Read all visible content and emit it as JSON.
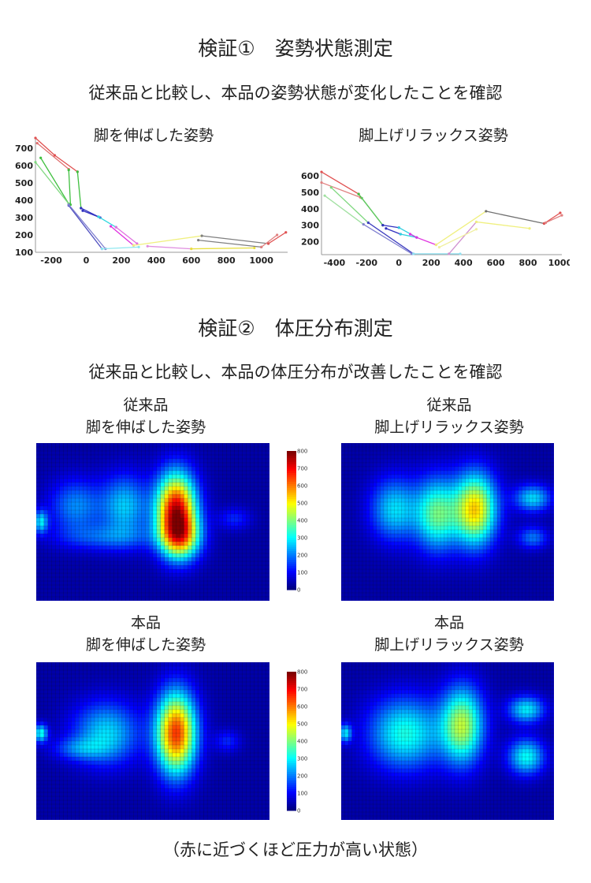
{
  "section1": {
    "title": "検証①　姿勢状態測定",
    "subtitle": "従来品と比較し、本品の姿勢状態が変化したことを確認"
  },
  "section2": {
    "title": "検証②　体圧分布測定",
    "subtitle": "従来品と比較し、本品の体圧分布が改善したことを確認",
    "panels": [
      {
        "line1": "従来品",
        "line2": "脚を伸ばした姿勢"
      },
      {
        "line1": "従来品",
        "line2": "脚上げリラックス姿勢"
      },
      {
        "line1": "本品",
        "line2": "脚を伸ばした姿勢"
      },
      {
        "line1": "本品",
        "line2": "脚上げリラックス姿勢"
      }
    ],
    "caption": "（赤に近づくほど圧力が高い状態）"
  },
  "chart_data": [
    {
      "type": "line",
      "title": "脚を伸ばした姿勢",
      "xlim": [
        -290,
        1150
      ],
      "ylim": [
        100,
        760
      ],
      "xticks": [
        -200,
        0,
        200,
        400,
        600,
        800,
        1000
      ],
      "yticks": [
        100,
        200,
        300,
        400,
        500,
        600,
        700
      ],
      "grid": false,
      "series": [
        {
          "color": "#e05050",
          "points": [
            [
              -290,
              760
            ],
            [
              -180,
              660
            ],
            [
              -50,
              565
            ]
          ]
        },
        {
          "color": "#e07070",
          "points": [
            [
              -280,
              730
            ],
            [
              -100,
              580
            ]
          ]
        },
        {
          "color": "#40c040",
          "points": [
            [
              -260,
              645
            ],
            [
              -100,
              380
            ]
          ]
        },
        {
          "color": "#80d880",
          "points": [
            [
              -290,
              620
            ],
            [
              -100,
              380
            ]
          ]
        },
        {
          "color": "#40c040",
          "points": [
            [
              -100,
              575
            ],
            [
              -90,
              375
            ]
          ]
        },
        {
          "color": "#40c040",
          "points": [
            [
              -50,
              565
            ],
            [
              -30,
              355
            ]
          ]
        },
        {
          "color": "#3030c0",
          "points": [
            [
              -30,
              355
            ],
            [
              70,
              305
            ]
          ]
        },
        {
          "color": "#3030c0",
          "points": [
            [
              -20,
              340
            ],
            [
              80,
              300
            ]
          ]
        },
        {
          "color": "#5050c0",
          "points": [
            [
              -100,
              370
            ],
            [
              90,
              120
            ]
          ]
        },
        {
          "color": "#8080d0",
          "points": [
            [
              -100,
              375
            ],
            [
              110,
              120
            ]
          ]
        },
        {
          "color": "#30d8e0",
          "points": [
            [
              70,
              305
            ],
            [
              170,
              245
            ]
          ]
        },
        {
          "color": "#90e8f0",
          "points": [
            [
              90,
              120
            ],
            [
              300,
              130
            ]
          ]
        },
        {
          "color": "#e030e0",
          "points": [
            [
              140,
              250
            ],
            [
              270,
              140
            ]
          ]
        },
        {
          "color": "#e070e0",
          "points": [
            [
              170,
              245
            ],
            [
              290,
              150
            ]
          ]
        },
        {
          "color": "#e090e0",
          "points": [
            [
              350,
              135
            ],
            [
              600,
              120
            ]
          ]
        },
        {
          "color": "#f0f080",
          "points": [
            [
              270,
              140
            ],
            [
              660,
              195
            ]
          ]
        },
        {
          "color": "#e8e040",
          "points": [
            [
              600,
              120
            ],
            [
              960,
              125
            ]
          ]
        },
        {
          "color": "#808080",
          "points": [
            [
              660,
              195
            ],
            [
              1040,
              150
            ]
          ]
        },
        {
          "color": "#808080",
          "points": [
            [
              640,
              170
            ],
            [
              1000,
              130
            ]
          ]
        },
        {
          "color": "#e05050",
          "points": [
            [
              1040,
              150
            ],
            [
              1140,
              215
            ]
          ]
        },
        {
          "color": "#e08080",
          "points": [
            [
              1000,
              130
            ],
            [
              1090,
              200
            ]
          ]
        }
      ]
    },
    {
      "type": "line",
      "title": "脚上げリラックス姿勢",
      "xlim": [
        -480,
        1010
      ],
      "ylim": [
        120,
        630
      ],
      "xticks": [
        -400,
        -200,
        0,
        200,
        400,
        600,
        800,
        1000
      ],
      "yticks": [
        200,
        300,
        400,
        500,
        600
      ],
      "grid": false,
      "series": [
        {
          "color": "#e05050",
          "points": [
            [
              -480,
              625
            ],
            [
              -250,
              490
            ]
          ]
        },
        {
          "color": "#e08080",
          "points": [
            [
              -480,
              560
            ],
            [
              -240,
              470
            ]
          ]
        },
        {
          "color": "#40c040",
          "points": [
            [
              -250,
              490
            ],
            [
              -100,
              300
            ]
          ]
        },
        {
          "color": "#60c860",
          "points": [
            [
              -230,
              465
            ],
            [
              -100,
              300
            ]
          ]
        },
        {
          "color": "#80d880",
          "points": [
            [
              -420,
              530
            ],
            [
              -190,
              315
            ]
          ]
        },
        {
          "color": "#a0e0a0",
          "points": [
            [
              -460,
              480
            ],
            [
              -220,
              305
            ]
          ]
        },
        {
          "color": "#4040c0",
          "points": [
            [
              -190,
              315
            ],
            [
              90,
              125
            ]
          ]
        },
        {
          "color": "#8080d0",
          "points": [
            [
              -220,
              305
            ],
            [
              80,
              125
            ]
          ]
        },
        {
          "color": "#3030c0",
          "points": [
            [
              -100,
              300
            ],
            [
              0,
              285
            ]
          ]
        },
        {
          "color": "#3030c0",
          "points": [
            [
              -80,
              280
            ],
            [
              10,
              245
            ]
          ]
        },
        {
          "color": "#30d0e0",
          "points": [
            [
              0,
              285
            ],
            [
              110,
              225
            ]
          ]
        },
        {
          "color": "#30d0e0",
          "points": [
            [
              10,
              245
            ],
            [
              110,
              225
            ]
          ]
        },
        {
          "color": "#90e0f0",
          "points": [
            [
              90,
              125
            ],
            [
              380,
              125
            ]
          ]
        },
        {
          "color": "#e030e0",
          "points": [
            [
              70,
              245
            ],
            [
              110,
              225
            ],
            [
              230,
              180
            ]
          ]
        },
        {
          "color": "#d090d0",
          "points": [
            [
              310,
              125
            ],
            [
              480,
              320
            ]
          ]
        },
        {
          "color": "#f0f080",
          "points": [
            [
              230,
              180
            ],
            [
              540,
              385
            ]
          ]
        },
        {
          "color": "#f0f080",
          "points": [
            [
              480,
              320
            ],
            [
              810,
              280
            ]
          ]
        },
        {
          "color": "#f0f0a0",
          "points": [
            [
              250,
              165
            ],
            [
              480,
              275
            ]
          ]
        },
        {
          "color": "#707070",
          "points": [
            [
              540,
              385
            ],
            [
              900,
              310
            ]
          ]
        },
        {
          "color": "#e05050",
          "points": [
            [
              900,
              310
            ],
            [
              1000,
              375
            ]
          ]
        },
        {
          "color": "#e08080",
          "points": [
            [
              910,
              315
            ],
            [
              1010,
              360
            ]
          ]
        }
      ]
    },
    {
      "type": "heatmap",
      "panels": [
        "従来品 脚を伸ばした姿勢",
        "従来品 脚上げリラックス姿勢",
        "本品 脚を伸ばした姿勢",
        "本品 脚上げリラックス姿勢"
      ],
      "colorbar": {
        "range": [
          0,
          800
        ],
        "ticks": [
          0,
          100,
          200,
          300,
          400,
          500,
          600,
          700,
          800
        ],
        "colormap": "jet"
      }
    }
  ]
}
